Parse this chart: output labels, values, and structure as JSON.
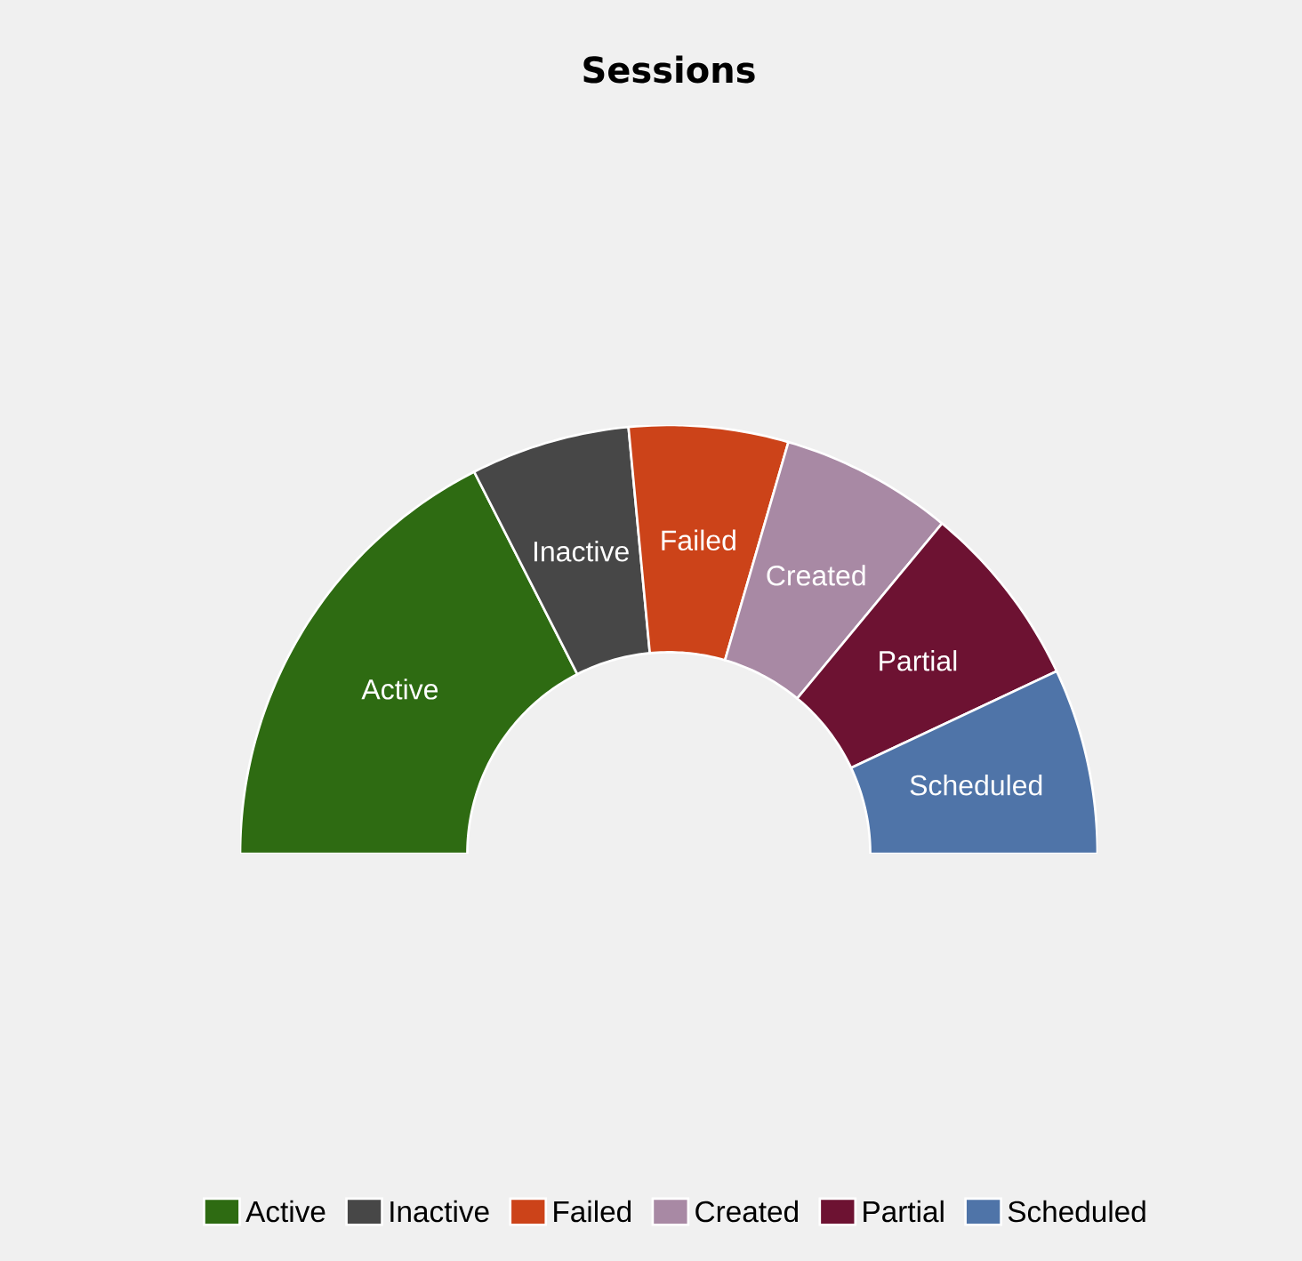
{
  "chart_data": {
    "type": "donut",
    "title": "Sessions",
    "categories": [
      "Active",
      "Inactive",
      "Failed",
      "Created",
      "Partial",
      "Scheduled"
    ],
    "values": [
      35,
      12,
      12,
      13,
      14,
      14
    ],
    "colors": [
      "#2e6b12",
      "#474747",
      "#cc4319",
      "#a889a4",
      "#6d1232",
      "#4f74a8"
    ],
    "legend": "bottom"
  }
}
